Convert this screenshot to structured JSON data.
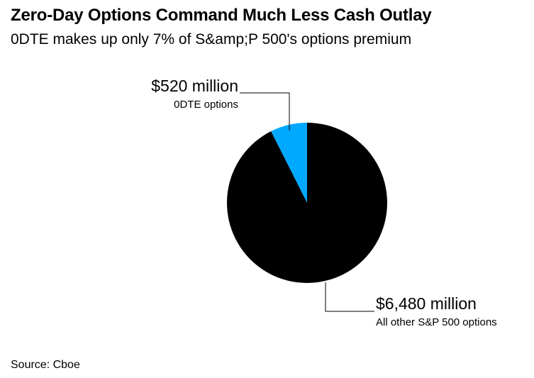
{
  "title": "Zero-Day Options Command Much Less Cash Outlay",
  "subtitle": "0DTE makes up only 7% of S&amp;P 500's options premium",
  "source": "Source: Cboe",
  "colors": {
    "odte": "#00a8ff",
    "other": "#000000"
  },
  "chart_data": {
    "type": "pie",
    "slices": [
      {
        "label": "0DTE options",
        "value_label": "$520 million",
        "value": 520,
        "color": "#00a8ff"
      },
      {
        "label": "All other S&P 500 options",
        "value_label": "$6,480 million",
        "value": 6480,
        "color": "#000000"
      }
    ],
    "start": "12 o'clock",
    "direction": "counterclockwise",
    "legend": "none"
  }
}
